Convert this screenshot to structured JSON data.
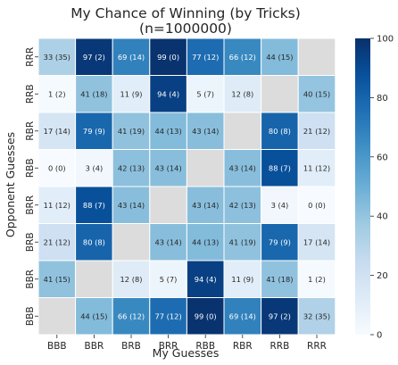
{
  "chart_data": {
    "type": "heatmap",
    "title": "My Chance of Winning (by Tricks)",
    "subtitle": "(n=1000000)",
    "xlabel": "My Guesses",
    "ylabel": "Opponent Guesses",
    "x_categories": [
      "BBB",
      "BBR",
      "BRB",
      "BRR",
      "RBB",
      "RBR",
      "RRB",
      "RRR"
    ],
    "y_categories": [
      "RRR",
      "RRB",
      "RBR",
      "RBB",
      "BRR",
      "BRB",
      "BBR",
      "BBB"
    ],
    "cells": [
      [
        {
          "value": 33,
          "label": "33 (35)"
        },
        {
          "value": 97,
          "label": "97 (2)"
        },
        {
          "value": 69,
          "label": "69 (14)"
        },
        {
          "value": 99,
          "label": "99 (0)"
        },
        {
          "value": 77,
          "label": "77 (12)"
        },
        {
          "value": 66,
          "label": "66 (12)"
        },
        {
          "value": 44,
          "label": "44 (15)"
        },
        null
      ],
      [
        {
          "value": 1,
          "label": "1 (2)"
        },
        {
          "value": 41,
          "label": "41 (18)"
        },
        {
          "value": 11,
          "label": "11 (9)"
        },
        {
          "value": 94,
          "label": "94 (4)"
        },
        {
          "value": 5,
          "label": "5 (7)"
        },
        {
          "value": 12,
          "label": "12 (8)"
        },
        null,
        {
          "value": 40,
          "label": "40 (15)"
        }
      ],
      [
        {
          "value": 17,
          "label": "17 (14)"
        },
        {
          "value": 79,
          "label": "79 (9)"
        },
        {
          "value": 41,
          "label": "41 (19)"
        },
        {
          "value": 44,
          "label": "44 (13)"
        },
        {
          "value": 43,
          "label": "43 (14)"
        },
        null,
        {
          "value": 80,
          "label": "80 (8)"
        },
        {
          "value": 21,
          "label": "21 (12)"
        }
      ],
      [
        {
          "value": 0,
          "label": "0 (0)"
        },
        {
          "value": 3,
          "label": "3 (4)"
        },
        {
          "value": 42,
          "label": "42 (13)"
        },
        {
          "value": 43,
          "label": "43 (14)"
        },
        null,
        {
          "value": 43,
          "label": "43 (14)"
        },
        {
          "value": 88,
          "label": "88 (7)"
        },
        {
          "value": 11,
          "label": "11 (12)"
        }
      ],
      [
        {
          "value": 11,
          "label": "11 (12)"
        },
        {
          "value": 88,
          "label": "88 (7)"
        },
        {
          "value": 43,
          "label": "43 (14)"
        },
        null,
        {
          "value": 43,
          "label": "43 (14)"
        },
        {
          "value": 42,
          "label": "42 (13)"
        },
        {
          "value": 3,
          "label": "3 (4)"
        },
        {
          "value": 0,
          "label": "0 (0)"
        }
      ],
      [
        {
          "value": 21,
          "label": "21 (12)"
        },
        {
          "value": 80,
          "label": "80 (8)"
        },
        null,
        {
          "value": 43,
          "label": "43 (14)"
        },
        {
          "value": 44,
          "label": "44 (13)"
        },
        {
          "value": 41,
          "label": "41 (19)"
        },
        {
          "value": 79,
          "label": "79 (9)"
        },
        {
          "value": 17,
          "label": "17 (14)"
        }
      ],
      [
        {
          "value": 41,
          "label": "41 (15)"
        },
        null,
        {
          "value": 12,
          "label": "12 (8)"
        },
        {
          "value": 5,
          "label": "5 (7)"
        },
        {
          "value": 94,
          "label": "94 (4)"
        },
        {
          "value": 11,
          "label": "11 (9)"
        },
        {
          "value": 41,
          "label": "41 (18)"
        },
        {
          "value": 1,
          "label": "1 (2)"
        }
      ],
      [
        null,
        {
          "value": 44,
          "label": "44 (15)"
        },
        {
          "value": 66,
          "label": "66 (12)"
        },
        {
          "value": 77,
          "label": "77 (12)"
        },
        {
          "value": 99,
          "label": "99 (0)"
        },
        {
          "value": 69,
          "label": "69 (14)"
        },
        {
          "value": 97,
          "label": "97 (2)"
        },
        {
          "value": 32,
          "label": "32 (35)"
        }
      ]
    ],
    "colorbar": {
      "min": 0,
      "max": 100,
      "ticks": [
        0,
        20,
        40,
        60,
        80,
        100
      ],
      "colormap": "Blues"
    },
    "missing_color": "#dcdcdc",
    "grid": false,
    "legend": "colorbar-right"
  }
}
